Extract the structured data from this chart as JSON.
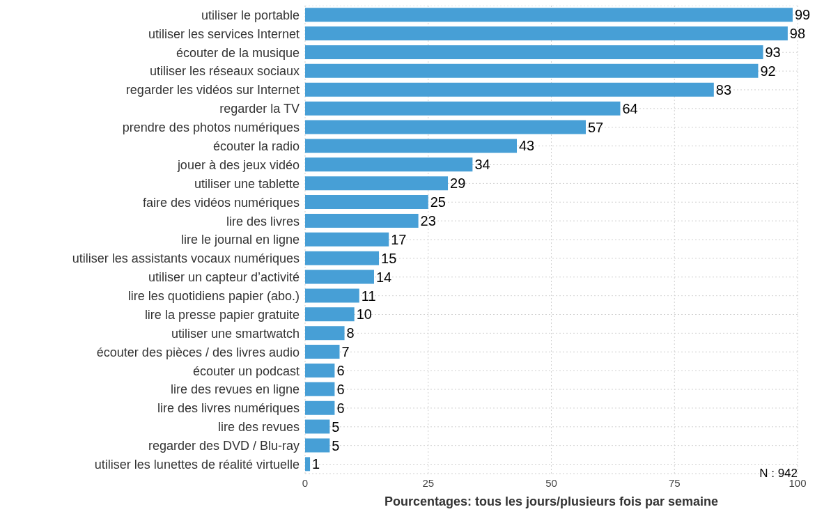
{
  "chart_data": {
    "type": "bar",
    "orientation": "horizontal",
    "xlabel": "Pourcentages: tous les jours/plusieurs fois par semaine",
    "categories": [
      "utiliser le portable",
      "utiliser les services Internet",
      "écouter de la musique",
      "utiliser les réseaux sociaux",
      "regarder les vidéos sur Internet",
      "regarder la TV",
      "prendre des photos numériques",
      "écouter la radio",
      "jouer à des jeux vidéo",
      "utiliser une tablette",
      "faire des vidéos numériques",
      "lire des livres",
      "lire le journal en ligne",
      "utiliser les assistants vocaux numériques",
      "utiliser un capteur d’activité",
      "lire les quotidiens papier (abo.)",
      "lire la presse papier gratuite",
      "utiliser une smartwatch",
      "écouter des pièces / des livres audio",
      "écouter un podcast",
      "lire des revues en ligne",
      "lire des livres numériques",
      "lire des revues",
      "regarder des DVD / Blu-ray",
      "utiliser les lunettes de réalité virtuelle"
    ],
    "values": [
      99,
      98,
      93,
      92,
      83,
      64,
      57,
      43,
      34,
      29,
      25,
      23,
      17,
      15,
      14,
      11,
      10,
      8,
      7,
      6,
      6,
      6,
      5,
      5,
      1
    ],
    "color": "#479fd6",
    "data_labels": true,
    "xlim": [
      0,
      100
    ],
    "xticks": [
      0,
      25,
      50,
      75,
      100
    ],
    "grid": true,
    "annotations": [
      "N : 942"
    ]
  }
}
